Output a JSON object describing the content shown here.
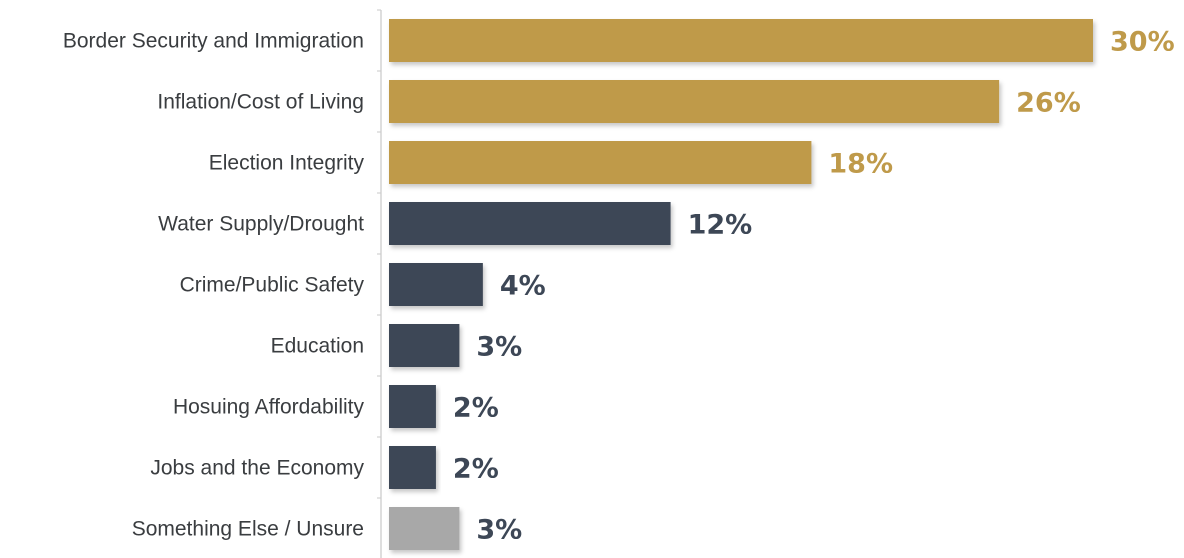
{
  "chart_data": {
    "type": "bar",
    "orientation": "horizontal",
    "title": "",
    "xlabel": "",
    "ylabel": "",
    "grid": false,
    "legend": "none",
    "xlim": [
      0,
      30
    ],
    "categories": [
      "Border Security and Immigration",
      "Inflation/Cost of Living",
      "Election Integrity",
      "Water Supply/Drought",
      "Crime/Public Safety",
      "Education",
      "Hosuing Affordability",
      "Jobs and the Economy",
      "Something Else / Unsure"
    ],
    "values": [
      30,
      26,
      18,
      12,
      4,
      3,
      2,
      2,
      3
    ],
    "value_labels": [
      "30%",
      "26%",
      "18%",
      "12%",
      "4%",
      "3%",
      "2%",
      "2%",
      "3%"
    ],
    "bar_colors": [
      "#bf9a4a",
      "#bf9a4a",
      "#bf9a4a",
      "#3d4756",
      "#3d4756",
      "#3d4756",
      "#3d4756",
      "#3d4756",
      "#a8a8a8"
    ],
    "label_colors": [
      "#bf9a4a",
      "#bf9a4a",
      "#bf9a4a",
      "#3d4756",
      "#3d4756",
      "#3d4756",
      "#3d4756",
      "#3d4756",
      "#3d4756"
    ]
  }
}
